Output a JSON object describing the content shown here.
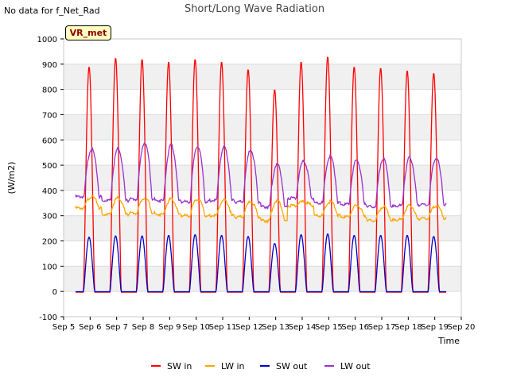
{
  "page": {
    "no_data_note": "No data for f_Net_Rad",
    "site_tag": "VR_met"
  },
  "chart_data": {
    "type": "line",
    "title": "Short/Long Wave Radiation",
    "xlabel": "Time",
    "ylabel": "(W/m2)",
    "ylim": [
      -100,
      1000
    ],
    "yticks": [
      -100,
      0,
      100,
      200,
      300,
      400,
      500,
      600,
      700,
      800,
      900,
      1000
    ],
    "xlim": [
      5,
      20
    ],
    "xticks": [
      5,
      6,
      7,
      8,
      9,
      10,
      11,
      12,
      13,
      14,
      15,
      16,
      17,
      18,
      19,
      20
    ],
    "xtick_labels": [
      "Sep 5",
      "Sep 6",
      "Sep 7",
      "Sep 8",
      "Sep 9",
      "Sep 10",
      "Sep 11",
      "Sep 12",
      "Sep 13",
      "Sep 14",
      "Sep 15",
      "Sep 16",
      "Sep 17",
      "Sep 18",
      "Sep 19",
      "Sep 20"
    ],
    "grid": "horizontal bands",
    "legend_position": "bottom",
    "series": [
      {
        "name": "SW in",
        "color": "#ff0000",
        "daily_peaks": [
          890,
          925,
          920,
          910,
          920,
          910,
          880,
          800,
          910,
          930,
          890,
          885,
          875,
          865
        ]
      },
      {
        "name": "LW in",
        "color": "#ffa500",
        "daily_peaks": [
          375,
          370,
          370,
          365,
          365,
          360,
          355,
          360,
          355,
          355,
          340,
          335,
          340,
          340
        ],
        "daily_troughs": [
          330,
          305,
          310,
          305,
          300,
          300,
          295,
          280,
          340,
          300,
          295,
          280,
          285,
          290
        ]
      },
      {
        "name": "SW out",
        "color": "#0000cc",
        "daily_peaks": [
          215,
          220,
          220,
          222,
          225,
          222,
          218,
          190,
          225,
          228,
          222,
          222,
          222,
          218
        ]
      },
      {
        "name": "LW out",
        "color": "#9932cc",
        "daily_peaks": [
          565,
          565,
          590,
          580,
          575,
          570,
          560,
          505,
          515,
          535,
          520,
          525,
          530,
          530
        ],
        "daily_troughs": [
          375,
          360,
          365,
          360,
          355,
          360,
          355,
          335,
          370,
          350,
          345,
          335,
          340,
          345
        ]
      }
    ]
  }
}
